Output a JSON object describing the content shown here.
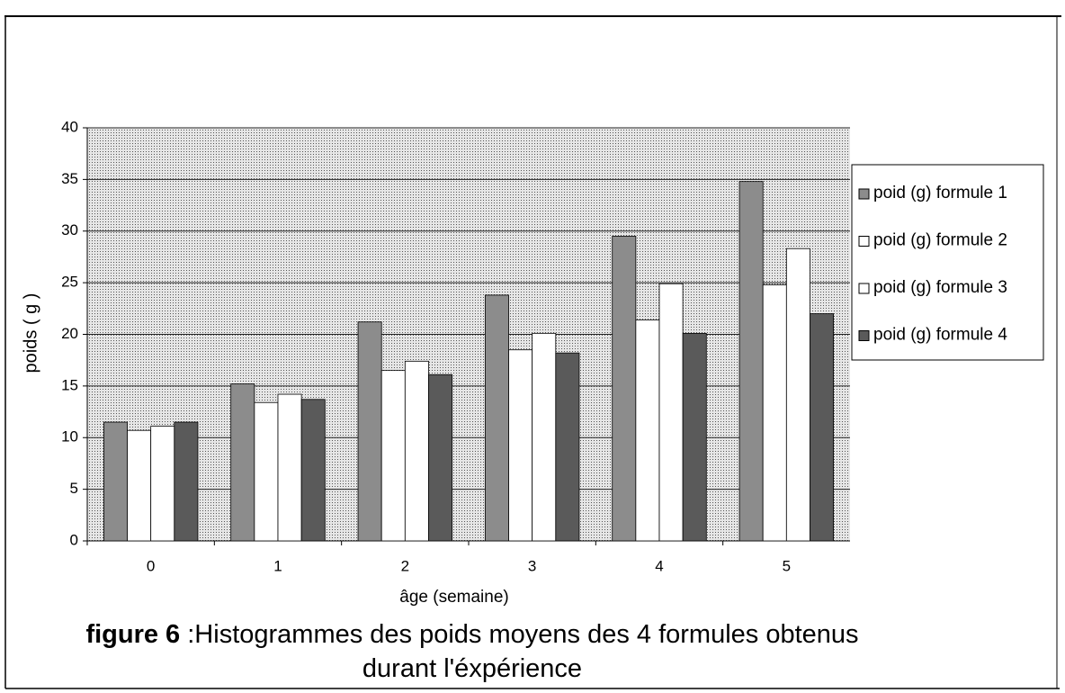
{
  "chart_data": {
    "type": "bar",
    "figure_label": "figure 6",
    "title": ":Histogrammes des poids moyens des 4 formules obtenus durant l'éxpérience",
    "x_label": "âge (semaine)",
    "y_label": "poids ( g )",
    "categories": [
      "0",
      "1",
      "2",
      "3",
      "4",
      "5"
    ],
    "series": [
      {
        "name": "poid (g) formule 1",
        "color": "#8c8c8c",
        "values": [
          11.5,
          15.2,
          21.2,
          23.8,
          29.5,
          34.8
        ]
      },
      {
        "name": "poid (g) formule 2",
        "color": "#ffffff",
        "values": [
          10.7,
          13.4,
          16.5,
          18.5,
          21.4,
          24.8
        ]
      },
      {
        "name": "poid (g) formule 3",
        "color": "#ffffff",
        "values": [
          11.1,
          14.2,
          17.4,
          20.1,
          24.9,
          28.3
        ]
      },
      {
        "name": "poid (g) formule 4",
        "color": "#5a5a5a",
        "values": [
          11.5,
          13.7,
          16.1,
          18.2,
          20.1,
          22.0
        ]
      }
    ],
    "ylim": [
      0,
      40
    ],
    "yticks": [
      0,
      5,
      10,
      15,
      20,
      25,
      30,
      35,
      40
    ],
    "grid": true,
    "legend": "right"
  }
}
